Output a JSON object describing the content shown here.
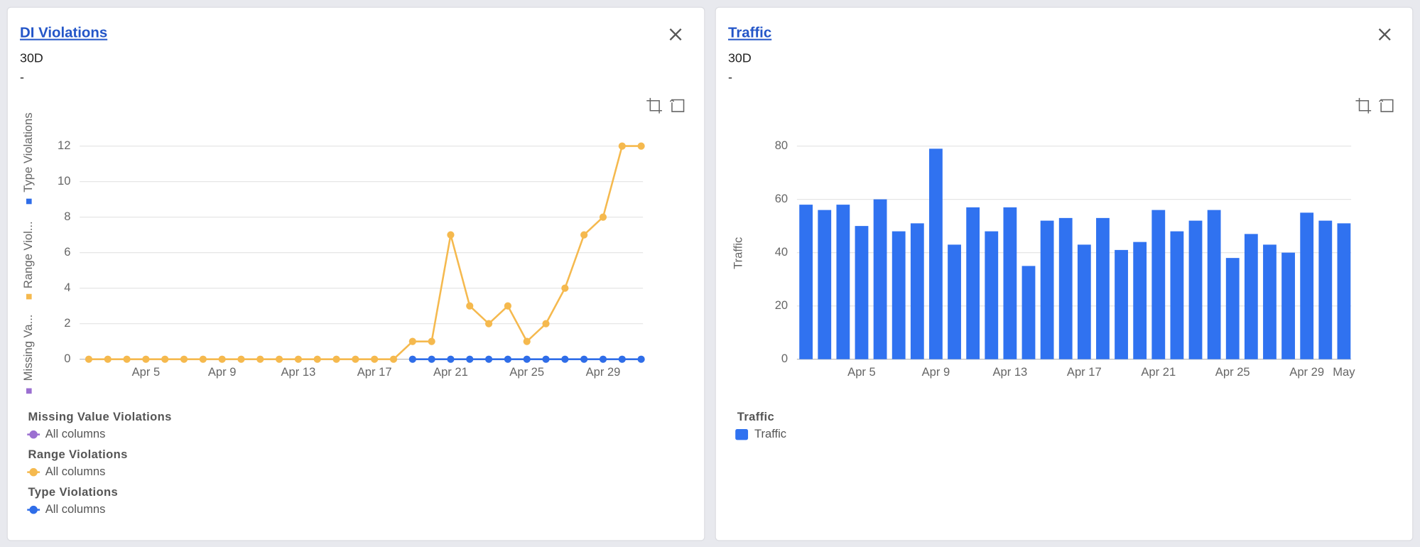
{
  "chart_data": [
    {
      "type": "line",
      "title": "DI Violations",
      "subtitle": "30D",
      "note": "-",
      "categories": [
        null,
        null,
        null,
        "Apr 5",
        null,
        null,
        null,
        "Apr 9",
        null,
        null,
        null,
        "Apr 13",
        null,
        null,
        null,
        "Apr 17",
        null,
        null,
        null,
        "Apr 21",
        null,
        null,
        null,
        "Apr 25",
        null,
        null,
        null,
        "Apr 29",
        null,
        null
      ],
      "y_axis_legend": [
        "Missing Va...",
        "Range Viol...",
        "Type Violations"
      ],
      "series": [
        {
          "group": "Missing Value Violations",
          "name": "All columns",
          "color": "#9b6fd1",
          "values": [
            null,
            null,
            null,
            null,
            null,
            null,
            null,
            null,
            null,
            null,
            null,
            null,
            null,
            null,
            null,
            null,
            null,
            null,
            null,
            null,
            null,
            null,
            null,
            null,
            null,
            null,
            null,
            null,
            null,
            null
          ]
        },
        {
          "group": "Range Violations",
          "name": "All columns",
          "color": "#f5b94e",
          "values": [
            0,
            0,
            0,
            0,
            0,
            0,
            0,
            0,
            0,
            0,
            0,
            0,
            0,
            0,
            0,
            0,
            0,
            1,
            1,
            7,
            3,
            2,
            3,
            1,
            2,
            4,
            7,
            8,
            12,
            12
          ]
        },
        {
          "group": "Type Violations",
          "name": "All columns",
          "color": "#2f6de8",
          "values": [
            null,
            null,
            null,
            null,
            null,
            null,
            null,
            null,
            null,
            null,
            null,
            null,
            null,
            null,
            null,
            null,
            null,
            0,
            0,
            0,
            0,
            0,
            0,
            0,
            0,
            0,
            0,
            0,
            0,
            0
          ]
        }
      ],
      "ylim": [
        0,
        12
      ],
      "yticks": [
        0,
        2,
        4,
        6,
        8,
        10,
        12
      ],
      "grid": true
    },
    {
      "type": "bar",
      "title": "Traffic",
      "subtitle": "30D",
      "note": "-",
      "y_label": "Traffic",
      "legend_title": "Traffic",
      "categories": [
        null,
        null,
        null,
        "Apr 5",
        null,
        null,
        null,
        "Apr 9",
        null,
        null,
        null,
        "Apr 13",
        null,
        null,
        null,
        "Apr 17",
        null,
        null,
        null,
        "Apr 21",
        null,
        null,
        null,
        "Apr 25",
        null,
        null,
        null,
        "Apr 29",
        null,
        "May"
      ],
      "series": [
        {
          "name": "Traffic",
          "color": "#3072f0",
          "values": [
            58,
            56,
            58,
            50,
            60,
            48,
            51,
            79,
            43,
            57,
            48,
            57,
            35,
            52,
            53,
            43,
            53,
            41,
            44,
            56,
            48,
            52,
            56,
            38,
            47,
            43,
            40,
            55,
            52,
            51
          ]
        }
      ],
      "ylim": [
        0,
        80
      ],
      "yticks": [
        0,
        20,
        40,
        60,
        80
      ],
      "grid": true
    }
  ]
}
